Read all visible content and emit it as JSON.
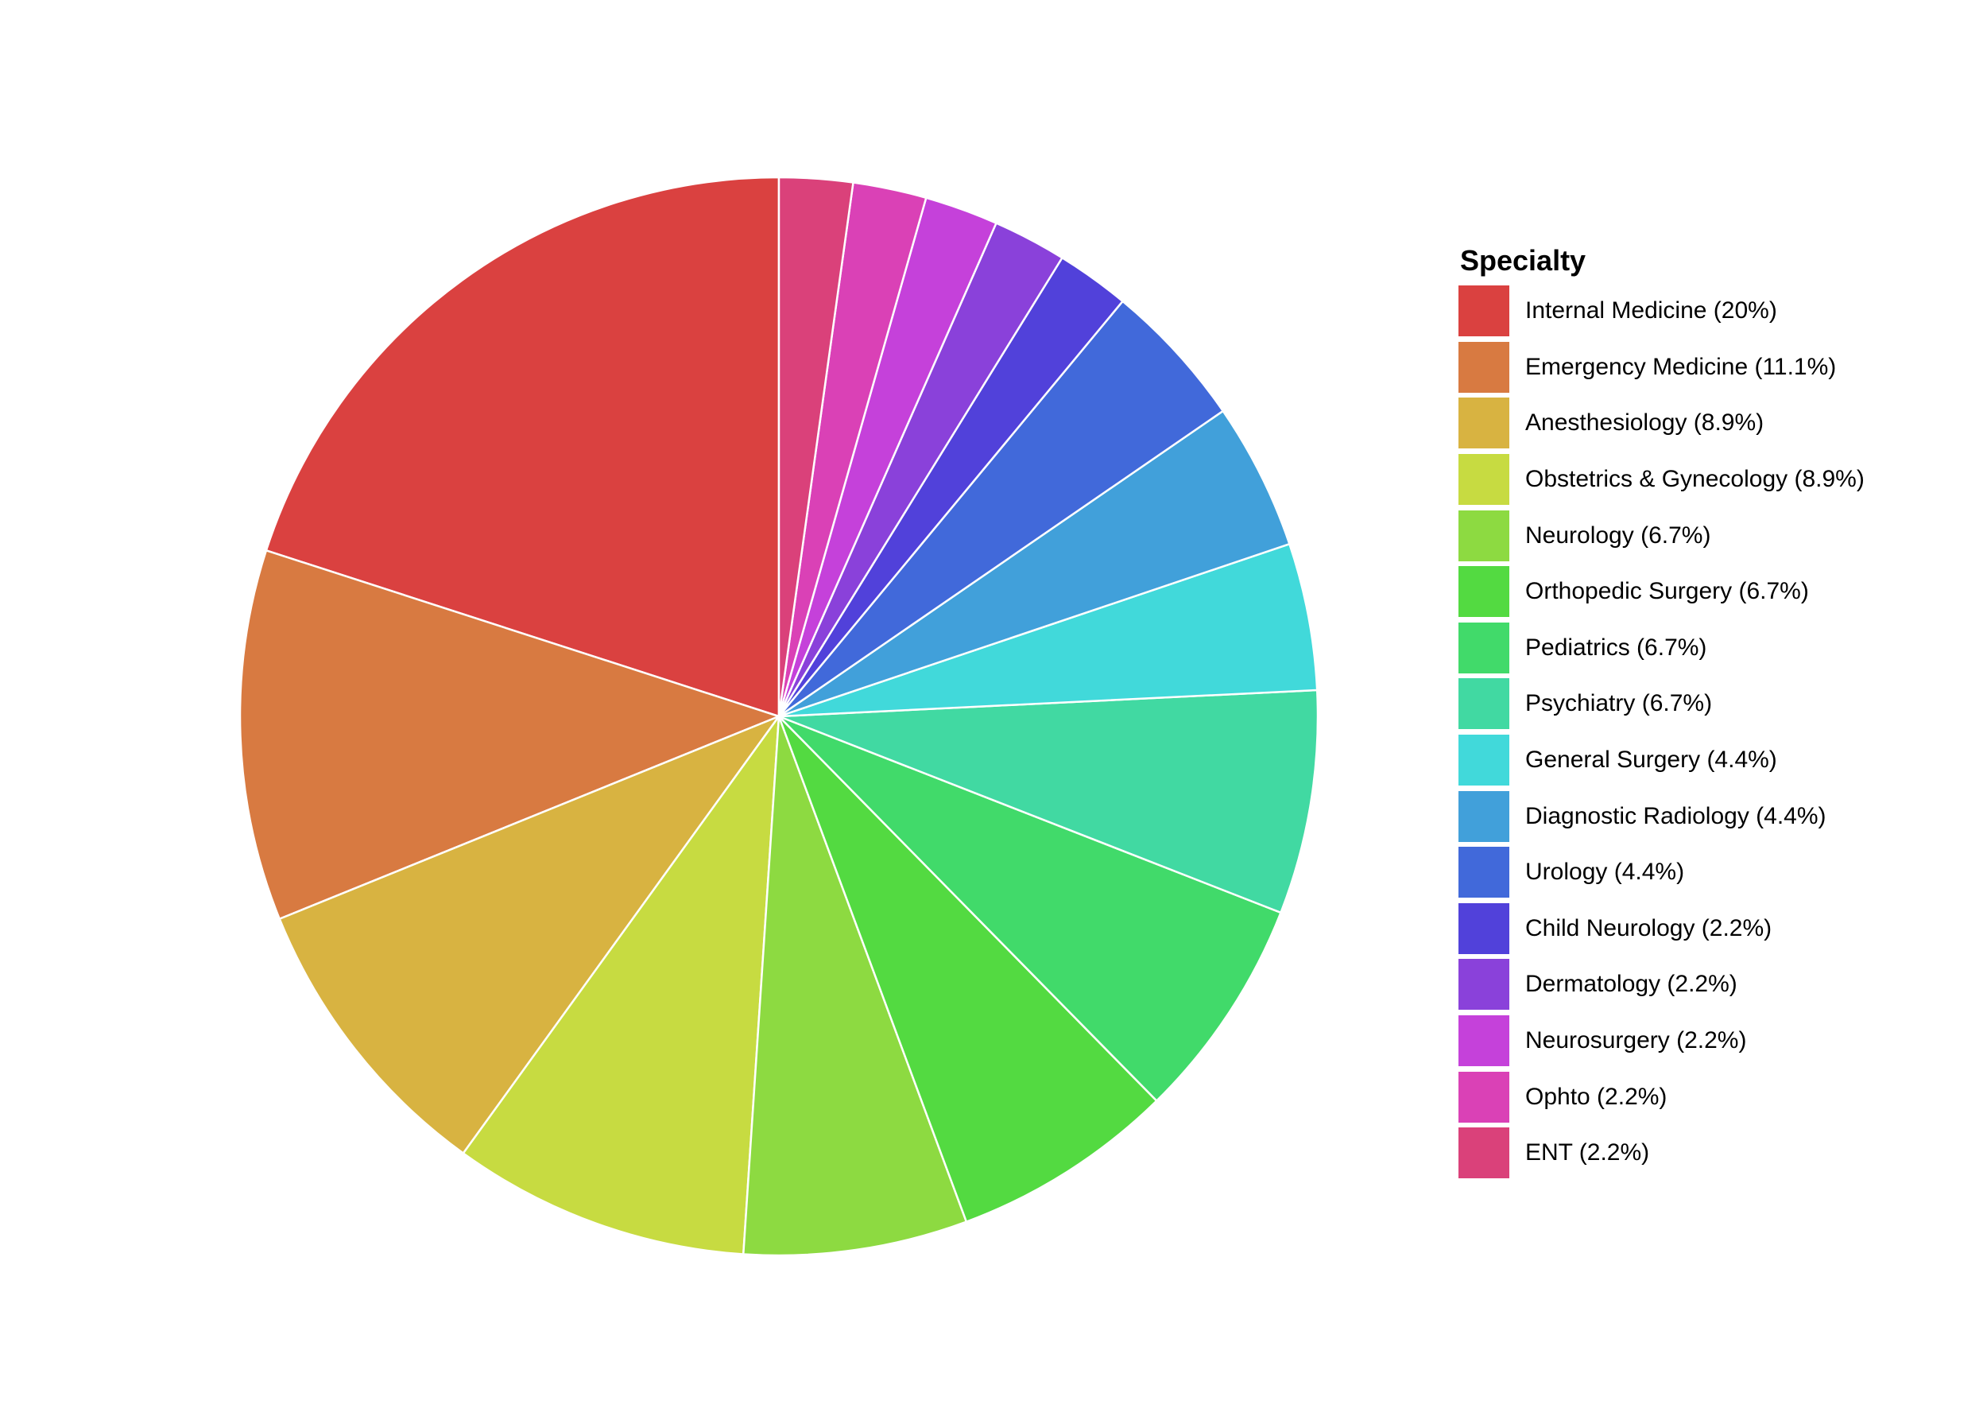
{
  "chart_data": {
    "type": "pie",
    "legend_title": "Specialty",
    "legend_position": "right",
    "start_angle": "12 o'clock",
    "direction": "counterclockwise",
    "slices": [
      {
        "label": "Internal Medicine",
        "value": 20,
        "legend_text": "Internal Medicine (20%)",
        "color": "#DA4140"
      },
      {
        "label": "Emergency Medicine",
        "value": 11.1,
        "legend_text": "Emergency Medicine (11.1%)",
        "color": "#D87A41"
      },
      {
        "label": "Anesthesiology",
        "value": 8.9,
        "legend_text": "Anesthesiology (8.9%)",
        "color": "#D8B341"
      },
      {
        "label": "Obstetrics & Gynecology",
        "value": 8.9,
        "legend_text": "Obstetrics & Gynecology (8.9%)",
        "color": "#C7DB41"
      },
      {
        "label": "Neurology",
        "value": 6.7,
        "legend_text": "Neurology (6.7%)",
        "color": "#8DDA41"
      },
      {
        "label": "Orthopedic Surgery",
        "value": 6.7,
        "legend_text": "Orthopedic Surgery (6.7%)",
        "color": "#53DA41"
      },
      {
        "label": "Pediatrics",
        "value": 6.7,
        "legend_text": "Pediatrics (6.7%)",
        "color": "#41DA6A"
      },
      {
        "label": "Psychiatry",
        "value": 6.7,
        "legend_text": "Psychiatry (6.7%)",
        "color": "#41D9A2"
      },
      {
        "label": "General Surgery",
        "value": 4.4,
        "legend_text": "General Surgery (4.4%)",
        "color": "#41D9DA"
      },
      {
        "label": "Diagnostic Radiology",
        "value": 4.4,
        "legend_text": "Diagnostic Radiology (4.4%)",
        "color": "#41A0DA"
      },
      {
        "label": "Urology",
        "value": 4.4,
        "legend_text": "Urology (4.4%)",
        "color": "#4169DA"
      },
      {
        "label": "Child Neurology",
        "value": 2.2,
        "legend_text": "Child Neurology (2.2%)",
        "color": "#5141DA"
      },
      {
        "label": "Dermatology",
        "value": 2.2,
        "legend_text": "Dermatology (2.2%)",
        "color": "#8A41DA"
      },
      {
        "label": "Neurosurgery",
        "value": 2.2,
        "legend_text": "Neurosurgery (2.2%)",
        "color": "#C541DA"
      },
      {
        "label": "Ophto",
        "value": 2.2,
        "legend_text": "Ophto (2.2%)",
        "color": "#DA41B6"
      },
      {
        "label": "ENT",
        "value": 2.2,
        "legend_text": "ENT (2.2%)",
        "color": "#DA417A"
      }
    ]
  }
}
